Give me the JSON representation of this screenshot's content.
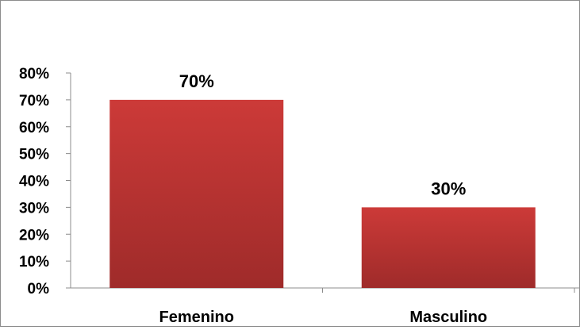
{
  "chart_data": {
    "type": "bar",
    "categories": [
      "Femenino",
      "Masculino"
    ],
    "values": [
      70,
      30
    ],
    "data_labels": [
      "70%",
      "30%"
    ],
    "title": "",
    "xlabel": "",
    "ylabel": "",
    "ylim": [
      0,
      80
    ],
    "y_ticks": [
      0,
      10,
      20,
      30,
      40,
      50,
      60,
      70,
      80
    ],
    "y_tick_labels": [
      "0%",
      "10%",
      "20%",
      "30%",
      "40%",
      "50%",
      "60%",
      "70%",
      "80%"
    ],
    "grid": false,
    "legend": "none",
    "bar_color": "#cc3a38",
    "bar_color_dark": "#9f2b2a"
  }
}
